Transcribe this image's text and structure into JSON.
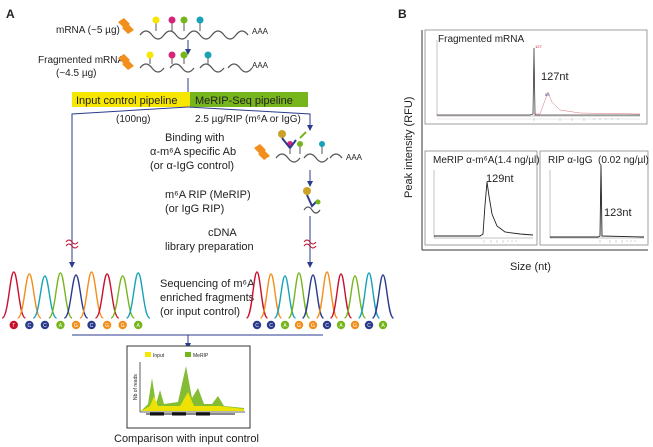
{
  "panel_a": {
    "label": "A",
    "mrna_label": "mRNA (~5 µg)",
    "polya": "AAA",
    "fragmented_line1": "Fragmented mRNA",
    "fragmented_line2": "(~4.5 µg)",
    "input_pipeline": "Input control pipeline",
    "merip_pipeline": "MeRIP-Seq pipeline",
    "input_amount": "(100ng)",
    "merip_amount": "2.5 µg/RIP (m⁶A or IgG)",
    "binding_line1": "Binding with",
    "binding_line2": "α-m⁶A specific Ab",
    "binding_line3": "(or α-IgG control)",
    "rip_line1": "m⁶A  RIP (MeRIP)",
    "rip_line2": "(or IgG RIP)",
    "cdna_line1": "cDNA",
    "cdna_line2": "library preparation",
    "seq_line1": "Sequencing of m⁶A",
    "seq_line2": "enriched fragments",
    "seq_line3": "(or input control)",
    "bases_left": [
      "T",
      "C",
      "C",
      "A",
      "G",
      "C",
      "G",
      "G",
      "A"
    ],
    "bases_right": [
      "C",
      "C",
      "A",
      "G",
      "G",
      "C",
      "A",
      "G",
      "C",
      "A"
    ],
    "legend_input": "Input",
    "legend_merip": "MeRIP",
    "ylabel_small": "Nb of reads",
    "comparison": "Comparison with input control",
    "colors": {
      "yellow": "#f7e600",
      "green": "#77b51d",
      "red": "#c8102e",
      "orange": "#f28e1c",
      "magenta": "#d6247c",
      "teal": "#17a2b8",
      "blue": "#2b3b8c"
    }
  },
  "panel_b": {
    "label": "B",
    "ylabel": "Peak intensity (RFU)",
    "xlabel": "Size (nt)",
    "top_title": "Fragmented mRNA",
    "top_peak": "127nt",
    "left_title": "MeRIP α-m⁶A(1.4 ng/µl)",
    "left_peak": "129nt",
    "right_title_a": "RIP α-IgG",
    "right_title_b": "(0.02 ng/µl)",
    "right_peak": "123nt"
  }
}
